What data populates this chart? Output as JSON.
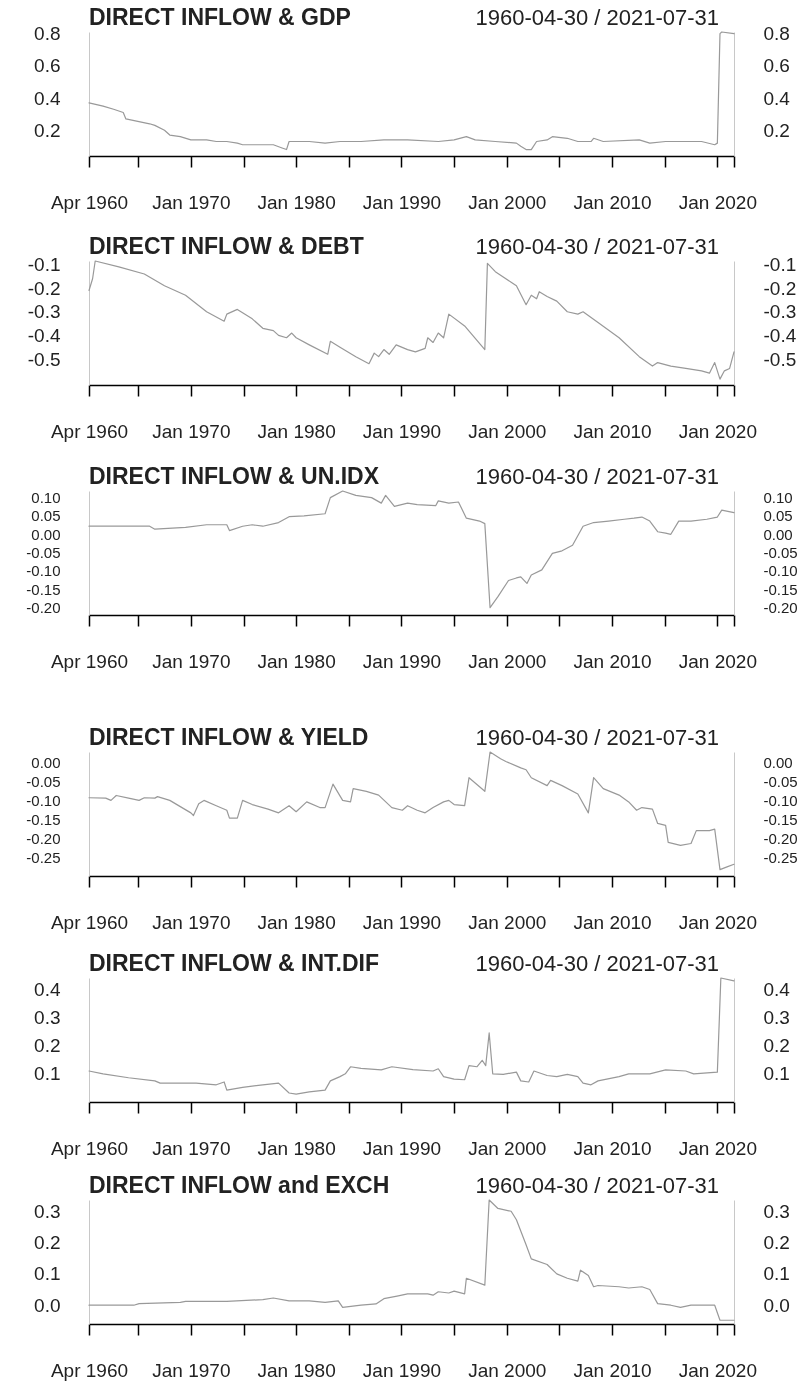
{
  "chart_data": [
    {
      "type": "line",
      "title": "DIRECT INFLOW & GDP",
      "subtitle": "1960-04-30 / 2021-07-31",
      "color": "#999999",
      "x": [
        "1960-04-30",
        "1961-09",
        "1962-09",
        "1963-08",
        "1963-11",
        "1966-02",
        "1966-08",
        "1967-07",
        "1968-01",
        "1969-01",
        "1970-01",
        "1971-07",
        "1972-06",
        "1973-06",
        "1974-06",
        "1974-12",
        "1977-11",
        "1978-09",
        "1979-02",
        "1979-05",
        "1981-04",
        "1982-10",
        "1984-03",
        "1986-03",
        "1988-05",
        "1990-08",
        "1993-07",
        "1995-01",
        "1996-03",
        "1997-01",
        "1998-12",
        "2000-12",
        "2001-05",
        "2001-11",
        "2002-05",
        "2002-11",
        "2003-11",
        "2004-05",
        "2005-10",
        "2006-10",
        "2008-01",
        "2008-04",
        "2009-03",
        "2012-08",
        "2013-08",
        "2015-02",
        "2018-07",
        "2019-10",
        "2020-01",
        "2020-04",
        "2020-06",
        "2021-07-31"
      ],
      "values": [
        0.37,
        0.35,
        0.33,
        0.31,
        0.27,
        0.24,
        0.23,
        0.2,
        0.17,
        0.16,
        0.14,
        0.14,
        0.13,
        0.13,
        0.12,
        0.11,
        0.11,
        0.09,
        0.08,
        0.13,
        0.13,
        0.12,
        0.13,
        0.13,
        0.14,
        0.14,
        0.13,
        0.14,
        0.16,
        0.14,
        0.13,
        0.12,
        0.1,
        0.08,
        0.08,
        0.13,
        0.14,
        0.16,
        0.15,
        0.13,
        0.13,
        0.15,
        0.13,
        0.14,
        0.12,
        0.13,
        0.13,
        0.11,
        0.12,
        0.8,
        0.81,
        0.8
      ],
      "xlim": [
        "1960-04-30",
        "2021-07-31"
      ],
      "xticks": [
        {
          "value": "1960-04-30",
          "label": "Apr 1960"
        },
        {
          "value": "1965-01",
          "label": null
        },
        {
          "value": "1970-01",
          "label": "Jan 1970"
        },
        {
          "value": "1975-01",
          "label": null
        },
        {
          "value": "1980-01",
          "label": "Jan 1980"
        },
        {
          "value": "1985-01",
          "label": null
        },
        {
          "value": "1990-01",
          "label": "Jan 1990"
        },
        {
          "value": "1995-01",
          "label": null
        },
        {
          "value": "2000-01",
          "label": "Jan 2000"
        },
        {
          "value": "2005-01",
          "label": null
        },
        {
          "value": "2010-01",
          "label": "Jan 2010"
        },
        {
          "value": "2015-01",
          "label": null
        },
        {
          "value": "2020-01",
          "label": "Jan 2020"
        },
        {
          "value": "2021-07-31",
          "label": null
        }
      ],
      "ylim": [
        0.04,
        0.81
      ],
      "yticks": [
        0.2,
        0.4,
        0.6,
        0.8
      ],
      "y2lim": [
        0.04,
        0.81
      ],
      "y2ticks": [
        0.2,
        0.4,
        0.6,
        0.8
      ]
    },
    {
      "type": "line",
      "title": "DIRECT INFLOW & DEBT",
      "subtitle": "1960-04-30 / 2021-07-31",
      "color": "#999999",
      "x": [
        "1960-04-30",
        "1960-09",
        "1960-12",
        "1963-03",
        "1965-08",
        "1967-07",
        "1969-07",
        "1971-07",
        "1973-03",
        "1973-06",
        "1974-06",
        "1975-11",
        "1976-11",
        "1977-11",
        "1978-05",
        "1979-02",
        "1979-08",
        "1980-01",
        "1981-04",
        "1983-01",
        "1983-04",
        "1984-03",
        "1985-09",
        "1986-12",
        "1987-06",
        "1987-11",
        "1988-05",
        "1988-11",
        "1989-07",
        "1990-08",
        "1991-05",
        "1992-04",
        "1992-07",
        "1993-01",
        "1993-07",
        "1994-01",
        "1994-07",
        "1996-01",
        "1997-12",
        "1998-03",
        "1998-12",
        "2000-06",
        "2000-12",
        "2001-11",
        "2002-05",
        "2002-11",
        "2003-02",
        "2003-11",
        "2004-10",
        "2005-10",
        "2006-10",
        "2007-04",
        "2008-09",
        "2010-09",
        "2012-08",
        "2013-11",
        "2014-05",
        "2015-08",
        "2017-01",
        "2018-07",
        "2019-04",
        "2019-10",
        "2020-04",
        "2020-09",
        "2021-03",
        "2021-07-31"
      ],
      "values": [
        -0.21,
        -0.16,
        -0.085,
        -0.11,
        -0.14,
        -0.19,
        -0.23,
        -0.3,
        -0.34,
        -0.31,
        -0.29,
        -0.33,
        -0.37,
        -0.38,
        -0.4,
        -0.41,
        -0.39,
        -0.41,
        -0.44,
        -0.48,
        -0.425,
        -0.45,
        -0.49,
        -0.52,
        -0.475,
        -0.49,
        -0.46,
        -0.48,
        -0.44,
        -0.46,
        -0.47,
        -0.455,
        -0.41,
        -0.43,
        -0.39,
        -0.41,
        -0.31,
        -0.36,
        -0.46,
        -0.095,
        -0.13,
        -0.175,
        -0.19,
        -0.27,
        -0.23,
        -0.245,
        -0.215,
        -0.235,
        -0.255,
        -0.3,
        -0.31,
        -0.3,
        -0.345,
        -0.41,
        -0.49,
        -0.53,
        -0.515,
        -0.53,
        -0.54,
        -0.55,
        -0.56,
        -0.515,
        -0.585,
        -0.55,
        -0.54,
        -0.47
      ],
      "xlim": [
        "1960-04-30",
        "2021-07-31"
      ],
      "xticks": [
        {
          "value": "1960-04-30",
          "label": "Apr 1960"
        },
        {
          "value": "1965-01",
          "label": null
        },
        {
          "value": "1970-01",
          "label": "Jan 1970"
        },
        {
          "value": "1975-01",
          "label": null
        },
        {
          "value": "1980-01",
          "label": "Jan 1980"
        },
        {
          "value": "1985-01",
          "label": null
        },
        {
          "value": "1990-01",
          "label": "Jan 1990"
        },
        {
          "value": "1995-01",
          "label": null
        },
        {
          "value": "2000-01",
          "label": "Jan 2000"
        },
        {
          "value": "2005-01",
          "label": null
        },
        {
          "value": "2010-01",
          "label": "Jan 2010"
        },
        {
          "value": "2015-01",
          "label": null
        },
        {
          "value": "2020-01",
          "label": "Jan 2020"
        },
        {
          "value": "2021-07-31",
          "label": null
        }
      ],
      "ylim": [
        -0.61,
        -0.085
      ],
      "yticks": [
        -0.5,
        -0.4,
        -0.3,
        -0.2,
        -0.1
      ],
      "y2lim": [
        -0.61,
        -0.085
      ],
      "y2ticks": [
        -0.5,
        -0.4,
        -0.3,
        -0.2,
        -0.1
      ]
    },
    {
      "type": "line",
      "title": "DIRECT INFLOW & UN.IDX",
      "subtitle": "1960-04-30 / 2021-07-31",
      "color": "#999999",
      "x": [
        "1960-04-30",
        "1966-02",
        "1966-08",
        "1969-07",
        "1971-07",
        "1973-06",
        "1973-09",
        "1974-12",
        "1975-11",
        "1976-11",
        "1978-05",
        "1979-05",
        "1980-10",
        "1982-10",
        "1983-04",
        "1984-06",
        "1985-09",
        "1987-03",
        "1988-02",
        "1988-07",
        "1989-05",
        "1990-08",
        "1991-07",
        "1993-04",
        "1993-07",
        "1994-07",
        "1995-06",
        "1996-03",
        "1997-06",
        "1997-12",
        "1998-06",
        "1999-03",
        "2000-03",
        "2000-12",
        "2001-05",
        "2001-12",
        "2002-05",
        "2003-05",
        "2004-05",
        "2005-04",
        "2006-04",
        "2007-04",
        "2008-04",
        "2009-09",
        "2011-03",
        "2012-02",
        "2012-11",
        "2013-08",
        "2014-05",
        "2015-02",
        "2015-08",
        "2016-05",
        "2017-07",
        "2019-01",
        "2020-01",
        "2020-06",
        "2021-07-31"
      ],
      "values": [
        0.022,
        0.022,
        0.014,
        0.019,
        0.026,
        0.026,
        0.01,
        0.022,
        0.026,
        0.022,
        0.032,
        0.048,
        0.05,
        0.056,
        0.1,
        0.118,
        0.106,
        0.1,
        0.085,
        0.106,
        0.076,
        0.085,
        0.081,
        0.078,
        0.091,
        0.085,
        0.088,
        0.044,
        0.036,
        0.029,
        -0.2,
        -0.17,
        -0.126,
        -0.119,
        -0.116,
        -0.134,
        -0.111,
        -0.097,
        -0.052,
        -0.045,
        -0.03,
        0.022,
        0.032,
        0.036,
        0.041,
        0.044,
        0.047,
        0.036,
        0.007,
        0.003,
        0,
        0.036,
        0.036,
        0.041,
        0.047,
        0.066,
        0.059
      ],
      "xlim": [
        "1960-04-30",
        "2021-07-31"
      ],
      "xticks": [
        {
          "value": "1960-04-30",
          "label": "Apr 1960"
        },
        {
          "value": "1965-01",
          "label": null
        },
        {
          "value": "1970-01",
          "label": "Jan 1970"
        },
        {
          "value": "1975-01",
          "label": null
        },
        {
          "value": "1980-01",
          "label": "Jan 1980"
        },
        {
          "value": "1985-01",
          "label": null
        },
        {
          "value": "1990-01",
          "label": "Jan 1990"
        },
        {
          "value": "1995-01",
          "label": null
        },
        {
          "value": "2000-01",
          "label": "Jan 2000"
        },
        {
          "value": "2005-01",
          "label": null
        },
        {
          "value": "2010-01",
          "label": "Jan 2010"
        },
        {
          "value": "2015-01",
          "label": null
        },
        {
          "value": "2020-01",
          "label": "Jan 2020"
        },
        {
          "value": "2021-07-31",
          "label": null
        }
      ],
      "ylim": [
        -0.22,
        0.118
      ],
      "yticks": [
        {
          "value": -0.2,
          "label": "-0.20"
        },
        -0.15,
        {
          "value": -0.1,
          "label": "-0.10"
        },
        -0.05,
        {
          "value": 0,
          "label": "0.00"
        },
        0.05,
        {
          "value": 0.1,
          "label": "0.10"
        }
      ],
      "y2lim": [
        -0.22,
        0.118
      ],
      "y2ticks": [
        {
          "value": -0.2,
          "label": "-0.20"
        },
        -0.15,
        {
          "value": -0.1,
          "label": "-0.10"
        },
        -0.05,
        {
          "value": 0,
          "label": "0.00"
        },
        0.05,
        {
          "value": 0.1,
          "label": "0.10"
        }
      ]
    },
    {
      "type": "line",
      "title": "DIRECT INFLOW & YIELD",
      "subtitle": "1960-04-30 / 2021-07-31",
      "color": "#999999",
      "x": [
        "1960-04-30",
        "1961-12",
        "1962-06",
        "1962-12",
        "1964-02",
        "1965-02",
        "1965-08",
        "1966-08",
        "1966-11",
        "1968-01",
        "1970-01",
        "1970-04",
        "1970-10",
        "1971-04",
        "1972-06",
        "1973-06",
        "1973-09",
        "1974-06",
        "1974-12",
        "1975-11",
        "1977-05",
        "1978-05",
        "1979-05",
        "1980-01",
        "1981-01",
        "1982-04",
        "1982-10",
        "1983-07",
        "1984-06",
        "1985-03",
        "1985-06",
        "1986-09",
        "1987-11",
        "1989-02",
        "1990-02",
        "1990-08",
        "1991-07",
        "1992-04",
        "1993-01",
        "1994-01",
        "1994-07",
        "1995-01",
        "1996-01",
        "1996-06",
        "1997-12",
        "1998-06",
        "1999-06",
        "1999-12",
        "2001-05",
        "2001-11",
        "2002-05",
        "2003-11",
        "2004-03",
        "2005-04",
        "2006-10",
        "2007-10",
        "2008-04",
        "2009-03",
        "2010-09",
        "2011-08",
        "2012-05",
        "2012-11",
        "2013-11",
        "2014-05",
        "2015-02",
        "2015-05",
        "2016-07",
        "2017-07",
        "2018-01",
        "2019-04",
        "2019-10",
        "2020-04",
        "2020-12",
        "2021-07-31"
      ],
      "values": [
        -0.093,
        -0.094,
        -0.1,
        -0.087,
        -0.094,
        -0.1,
        -0.093,
        -0.094,
        -0.09,
        -0.1,
        -0.133,
        -0.14,
        -0.109,
        -0.1,
        -0.114,
        -0.126,
        -0.147,
        -0.147,
        -0.1,
        -0.111,
        -0.123,
        -0.133,
        -0.114,
        -0.13,
        -0.104,
        -0.119,
        -0.119,
        -0.057,
        -0.1,
        -0.104,
        -0.069,
        -0.076,
        -0.086,
        -0.119,
        -0.126,
        -0.114,
        -0.126,
        -0.133,
        -0.119,
        -0.104,
        -0.1,
        -0.111,
        -0.114,
        -0.04,
        -0.076,
        0.028,
        0.01,
        0.003,
        -0.014,
        -0.019,
        -0.04,
        -0.061,
        -0.047,
        -0.061,
        -0.083,
        -0.133,
        -0.04,
        -0.069,
        -0.086,
        -0.104,
        -0.126,
        -0.119,
        -0.123,
        -0.161,
        -0.166,
        -0.211,
        -0.219,
        -0.214,
        -0.18,
        -0.18,
        -0.176,
        -0.283,
        -0.276,
        -0.269
      ],
      "xlim": [
        "1960-04-30",
        "2021-07-31"
      ],
      "xticks": [
        {
          "value": "1960-04-30",
          "label": "Apr 1960"
        },
        {
          "value": "1965-01",
          "label": null
        },
        {
          "value": "1970-01",
          "label": "Jan 1970"
        },
        {
          "value": "1975-01",
          "label": null
        },
        {
          "value": "1980-01",
          "label": "Jan 1980"
        },
        {
          "value": "1985-01",
          "label": null
        },
        {
          "value": "1990-01",
          "label": "Jan 1990"
        },
        {
          "value": "1995-01",
          "label": null
        },
        {
          "value": "2000-01",
          "label": "Jan 2000"
        },
        {
          "value": "2005-01",
          "label": null
        },
        {
          "value": "2010-01",
          "label": "Jan 2010"
        },
        {
          "value": "2015-01",
          "label": null
        },
        {
          "value": "2020-01",
          "label": "Jan 2020"
        },
        {
          "value": "2021-07-31",
          "label": null
        }
      ],
      "ylim": [
        -0.3,
        0.028
      ],
      "yticks": [
        -0.25,
        {
          "value": -0.2,
          "label": "-0.20"
        },
        -0.15,
        {
          "value": -0.1,
          "label": "-0.10"
        },
        -0.05,
        {
          "value": 0,
          "label": "0.00"
        }
      ],
      "y2lim": [
        -0.3,
        0.028
      ],
      "y2ticks": [
        -0.25,
        {
          "value": -0.2,
          "label": "-0.20"
        },
        -0.15,
        {
          "value": -0.1,
          "label": "-0.10"
        },
        -0.05,
        {
          "value": 0,
          "label": "0.00"
        }
      ]
    },
    {
      "type": "line",
      "title": "DIRECT INFLOW & INT.DIF",
      "subtitle": "1960-04-30 / 2021-07-31",
      "color": "#999999",
      "x": [
        "1960-04-30",
        "1961-09",
        "1964-02",
        "1966-08",
        "1967-02",
        "1970-07",
        "1972-06",
        "1973-03",
        "1973-06",
        "1974-12",
        "1976-11",
        "1978-05",
        "1979-05",
        "1980-01",
        "1981-04",
        "1982-10",
        "1983-04",
        "1984-03",
        "1984-09",
        "1985-03",
        "1986-03",
        "1988-02",
        "1989-02",
        "1991-02",
        "1993-01",
        "1993-07",
        "1994-01",
        "1995-01",
        "1996-01",
        "1996-06",
        "1997-03",
        "1997-09",
        "1998-01",
        "1998-05",
        "1998-09",
        "1999-09",
        "2000-12",
        "2001-05",
        "2002-02",
        "2002-08",
        "2003-11",
        "2004-10",
        "2005-10",
        "2006-10",
        "2007-04",
        "2008-01",
        "2008-09",
        "2010-09",
        "2011-08",
        "2013-08",
        "2015-02",
        "2017-01",
        "2017-10",
        "2020-01",
        "2020-05",
        "2021-07-31"
      ],
      "values": [
        0.11,
        0.1,
        0.086,
        0.075,
        0.067,
        0.067,
        0.061,
        0.071,
        0.042,
        0.052,
        0.061,
        0.067,
        0.032,
        0.028,
        0.036,
        0.042,
        0.075,
        0.09,
        0.1,
        0.125,
        0.119,
        0.114,
        0.125,
        0.115,
        0.11,
        0.118,
        0.09,
        0.081,
        0.079,
        0.129,
        0.125,
        0.148,
        0.129,
        0.245,
        0.1,
        0.098,
        0.106,
        0.075,
        0.071,
        0.11,
        0.094,
        0.09,
        0.098,
        0.09,
        0.067,
        0.061,
        0.075,
        0.09,
        0.1,
        0.1,
        0.114,
        0.11,
        0.1,
        0.106,
        0.44,
        0.43
      ],
      "xlim": [
        "1960-04-30",
        "2021-07-31"
      ],
      "xticks": [
        {
          "value": "1960-04-30",
          "label": "Apr 1960"
        },
        {
          "value": "1965-01",
          "label": null
        },
        {
          "value": "1970-01",
          "label": "Jan 1970"
        },
        {
          "value": "1975-01",
          "label": null
        },
        {
          "value": "1980-01",
          "label": "Jan 1980"
        },
        {
          "value": "1985-01",
          "label": null
        },
        {
          "value": "1990-01",
          "label": "Jan 1990"
        },
        {
          "value": "1995-01",
          "label": null
        },
        {
          "value": "2000-01",
          "label": "Jan 2000"
        },
        {
          "value": "2005-01",
          "label": null
        },
        {
          "value": "2010-01",
          "label": "Jan 2010"
        },
        {
          "value": "2015-01",
          "label": null
        },
        {
          "value": "2020-01",
          "label": "Jan 2020"
        },
        {
          "value": "2021-07-31",
          "label": null
        }
      ],
      "ylim": [
        0,
        0.44
      ],
      "yticks": [
        0.1,
        0.2,
        0.3,
        0.4
      ],
      "y2lim": [
        0,
        0.44
      ],
      "y2ticks": [
        0.1,
        0.2,
        0.3,
        0.4
      ]
    },
    {
      "type": "line",
      "title": "DIRECT INFLOW and EXCH",
      "subtitle": "1960-04-30 / 2021-07-31",
      "color": "#999999",
      "x": [
        "1960-04-30",
        "1964-08",
        "1965-02",
        "1969-01",
        "1969-07",
        "1973-06",
        "1976-11",
        "1977-11",
        "1979-05",
        "1981-04",
        "1982-10",
        "1984-01",
        "1984-06",
        "1986-03",
        "1987-08",
        "1988-05",
        "1989-08",
        "1990-08",
        "1992-07",
        "1993-01",
        "1993-07",
        "1994-07",
        "1995-01",
        "1996-01",
        "1996-03",
        "1997-12",
        "1998-05",
        "1999-03",
        "2000-06",
        "2000-12",
        "2001-11",
        "2002-05",
        "2003-11",
        "2004-10",
        "2005-10",
        "2006-10",
        "2007-01",
        "2007-10",
        "2008-04",
        "2008-09",
        "2010-09",
        "2011-08",
        "2012-11",
        "2013-08",
        "2014-05",
        "2015-08",
        "2016-07",
        "2017-07",
        "2019-10",
        "2020-04",
        "2021-07-31"
      ],
      "values": [
        0,
        0,
        0.005,
        0.009,
        0.012,
        0.012,
        0.018,
        0.023,
        0.014,
        0.014,
        0.009,
        0.014,
        -0.007,
        0,
        0.004,
        0.021,
        0.029,
        0.036,
        0.036,
        0.032,
        0.043,
        0.039,
        0.045,
        0.036,
        0.086,
        0.064,
        0.336,
        0.309,
        0.3,
        0.273,
        0.193,
        0.148,
        0.13,
        0.1,
        0.086,
        0.077,
        0.112,
        0.095,
        0.059,
        0.063,
        0.059,
        0.055,
        0.059,
        0.05,
        0.005,
        0,
        -0.007,
        0,
        0,
        -0.048,
        -0.048
      ],
      "xlim": [
        "1960-04-30",
        "2021-07-31"
      ],
      "xticks": [
        {
          "value": "1960-04-30",
          "label": "Apr 1960"
        },
        {
          "value": "1965-01",
          "label": null
        },
        {
          "value": "1970-01",
          "label": "Jan 1970"
        },
        {
          "value": "1975-01",
          "label": null
        },
        {
          "value": "1980-01",
          "label": "Jan 1980"
        },
        {
          "value": "1985-01",
          "label": null
        },
        {
          "value": "1990-01",
          "label": "Jan 1990"
        },
        {
          "value": "1995-01",
          "label": null
        },
        {
          "value": "2000-01",
          "label": "Jan 2000"
        },
        {
          "value": "2005-01",
          "label": null
        },
        {
          "value": "2010-01",
          "label": "Jan 2010"
        },
        {
          "value": "2015-01",
          "label": null
        },
        {
          "value": "2020-01",
          "label": "Jan 2020"
        },
        {
          "value": "2021-07-31",
          "label": null
        }
      ],
      "ylim": [
        -0.06,
        0.336
      ],
      "yticks": [
        {
          "value": 0,
          "label": "0.0"
        },
        0.1,
        0.2,
        0.3
      ],
      "y2lim": [
        -0.06,
        0.336
      ],
      "y2ticks": [
        {
          "value": 0,
          "label": "0.0"
        },
        0.1,
        0.2,
        0.3
      ]
    }
  ]
}
